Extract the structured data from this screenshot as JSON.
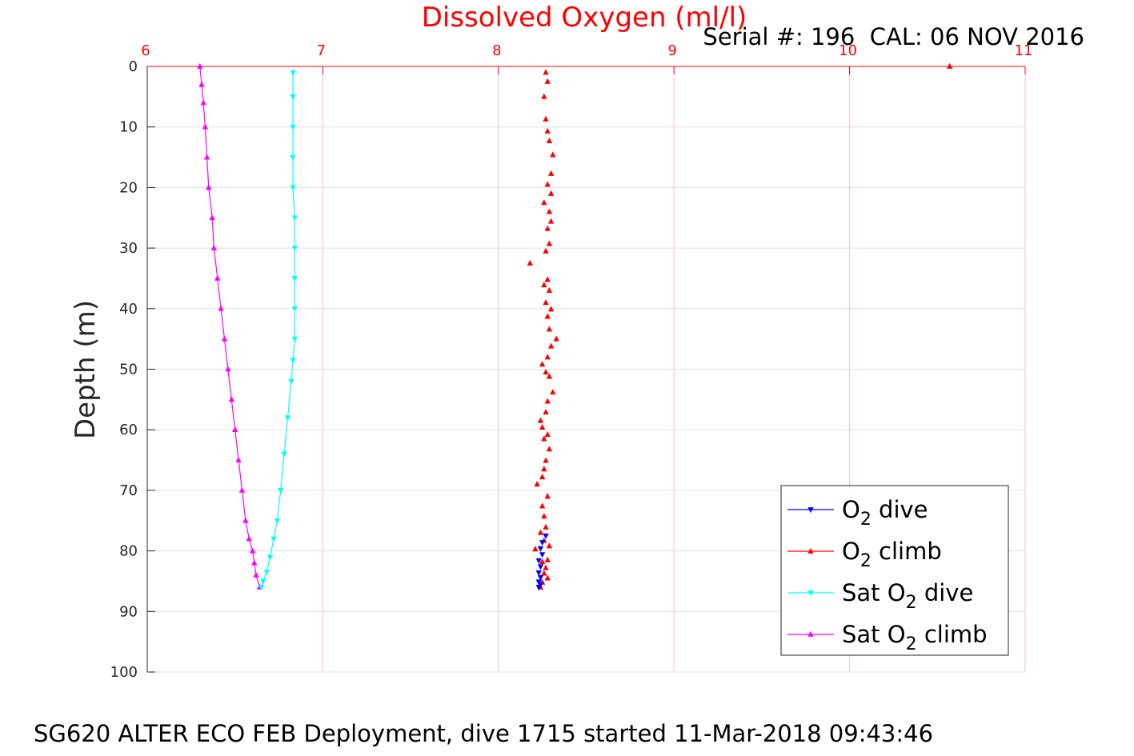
{
  "chart_data": {
    "type": "scatter",
    "title": "Dissolved Oxygen (ml/l)",
    "subtitle": "Serial #: 196  CAL: 06 NOV 2016",
    "footer": "SG620 ALTER ECO FEB Deployment, dive 1715 started 11-Mar-2018 09:43:46",
    "xlabel": "Dissolved Oxygen (ml/l)",
    "ylabel": "Depth (m)",
    "xlim": [
      6,
      11
    ],
    "ylim": [
      0,
      100
    ],
    "y_reversed": true,
    "x_axis_position": "top",
    "xticks": [
      "6",
      "7",
      "8",
      "9",
      "10",
      "11"
    ],
    "yticks": [
      "0",
      "10",
      "20",
      "30",
      "40",
      "50",
      "60",
      "70",
      "80",
      "90",
      "100"
    ],
    "grid": true,
    "colors": {
      "x_axis": "#ff0000",
      "title": "#ff0000",
      "grid": "#e0e0e0",
      "x_grid": "#ffc0c0"
    },
    "legend": {
      "placement": "bottom-right",
      "entries": [
        {
          "pre": "O",
          "sub": "2",
          "post": " dive"
        },
        {
          "pre": "O",
          "sub": "2",
          "post": " climb"
        },
        {
          "pre": "Sat O",
          "sub": "2",
          "post": " dive"
        },
        {
          "pre": "Sat O",
          "sub": "2",
          "post": " climb"
        }
      ]
    },
    "series": [
      {
        "name": "O2 dive",
        "color": "#0000ff",
        "marker": "triangle-down",
        "line": false,
        "x": [
          8.27,
          8.25,
          8.24,
          8.25,
          8.23,
          8.24,
          8.23,
          8.24,
          8.23,
          8.24,
          8.23
        ],
        "y": [
          77.5,
          78.6,
          79.6,
          80.6,
          81.6,
          82.6,
          83.6,
          84.4,
          85.1,
          85.6,
          86.0
        ]
      },
      {
        "name": "O2 climb",
        "color": "#ff0000",
        "marker": "triangle-up",
        "line": false,
        "x": [
          8.24,
          8.25,
          8.28,
          8.26,
          8.27,
          8.25,
          8.28,
          8.21,
          8.29,
          8.26,
          8.24,
          8.27,
          8.26,
          8.25,
          8.28,
          8.22,
          8.25,
          8.26,
          8.27,
          8.29,
          8.26,
          8.28,
          8.25,
          8.24,
          8.27,
          8.28,
          8.31,
          8.29,
          8.27,
          8.25,
          8.28,
          8.3,
          8.33,
          8.29,
          8.28,
          8.3,
          8.27,
          8.29,
          8.26,
          8.28,
          8.18,
          8.27,
          8.29,
          8.28,
          8.3,
          8.29,
          8.26,
          8.3,
          8.28,
          8.3,
          8.31,
          8.29,
          8.28,
          8.27,
          8.26,
          8.28,
          8.27,
          10.57
        ],
        "y": [
          86.0,
          85.2,
          84.5,
          83.7,
          82.8,
          81.8,
          81.5,
          79.7,
          79.2,
          78.3,
          77.0,
          76.1,
          74.3,
          72.6,
          71.0,
          69.0,
          67.8,
          66.5,
          65.1,
          63.2,
          61.5,
          60.8,
          59.6,
          58.5,
          57.1,
          55.3,
          53.8,
          51.2,
          50.5,
          49.2,
          48.0,
          46.2,
          45.0,
          43.4,
          41.3,
          40.1,
          39.0,
          37.0,
          36.1,
          35.2,
          32.5,
          30.5,
          29.3,
          26.8,
          25.6,
          24.0,
          22.5,
          21.0,
          19.5,
          17.7,
          14.6,
          12.3,
          10.7,
          8.7,
          5.0,
          2.5,
          1.0,
          0.0
        ]
      },
      {
        "name": "Sat O2 dive",
        "color": "#00ffff",
        "marker": "triangle-down",
        "line": true,
        "x": [
          6.83,
          6.83,
          6.83,
          6.83,
          6.83,
          6.84,
          6.84,
          6.84,
          6.84,
          6.84,
          6.83,
          6.82,
          6.8,
          6.78,
          6.76,
          6.74,
          6.72,
          6.7,
          6.68,
          6.66,
          6.65
        ],
        "y": [
          1.0,
          5.0,
          10.0,
          15.0,
          20.0,
          25.0,
          30.0,
          35.0,
          40.0,
          45.0,
          48.5,
          52.0,
          58.0,
          64.0,
          70.0,
          75.0,
          78.0,
          81.0,
          83.5,
          85.0,
          86.0
        ]
      },
      {
        "name": "Sat O2 climb",
        "color": "#ff00ff",
        "marker": "triangle-up",
        "line": true,
        "x": [
          6.64,
          6.62,
          6.61,
          6.6,
          6.58,
          6.56,
          6.54,
          6.52,
          6.5,
          6.48,
          6.46,
          6.44,
          6.42,
          6.4,
          6.38,
          6.37,
          6.35,
          6.34,
          6.33,
          6.32,
          6.31,
          6.3
        ],
        "y": [
          86.0,
          84.0,
          82.0,
          80.0,
          78.0,
          75.0,
          70.0,
          65.0,
          60.0,
          55.0,
          50.0,
          45.0,
          40.0,
          35.0,
          30.0,
          25.0,
          20.0,
          15.0,
          10.0,
          6.0,
          3.0,
          0.0
        ]
      }
    ]
  }
}
